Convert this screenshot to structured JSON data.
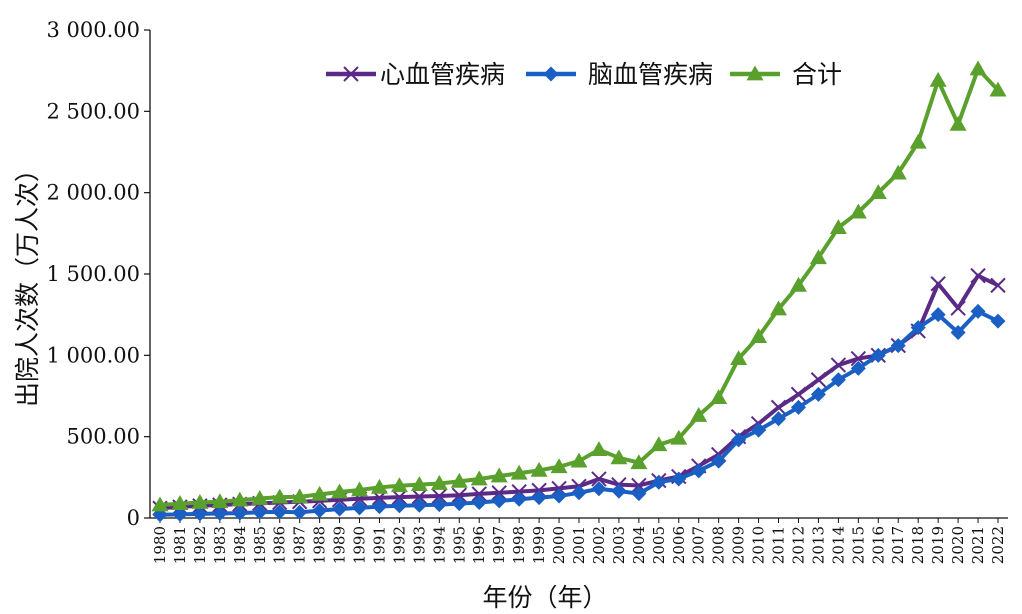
{
  "chart_data": {
    "type": "line",
    "xlabel": "年份（年）",
    "ylabel": "出院人次数（万人次）",
    "ylim": [
      0,
      3000
    ],
    "y_ticks": [
      0,
      500,
      1000,
      1500,
      2000,
      2500,
      3000
    ],
    "y_tick_labels": [
      "0",
      "500.00",
      "1 000.00",
      "1 500.00",
      "2 000.00",
      "2 500.00",
      "3 000.00"
    ],
    "categories": [
      "1980",
      "1981",
      "1982",
      "1983",
      "1984",
      "1985",
      "1986",
      "1987",
      "1988",
      "1989",
      "1990",
      "1991",
      "1992",
      "1993",
      "1994",
      "1995",
      "1996",
      "1997",
      "1998",
      "1999",
      "2000",
      "2001",
      "2002",
      "2003",
      "2004",
      "2005",
      "2006",
      "2007",
      "2008",
      "2009",
      "2010",
      "2011",
      "2012",
      "2013",
      "2014",
      "2015",
      "2016",
      "2017",
      "2018",
      "2019",
      "2020",
      "2021",
      "2022"
    ],
    "grid": false,
    "legend_position": "top",
    "series": [
      {
        "name": "心血管疾病",
        "color": "#5b2a86",
        "marker": "x",
        "values": [
          60,
          68,
          75,
          80,
          85,
          90,
          95,
          100,
          105,
          112,
          118,
          124,
          128,
          132,
          135,
          140,
          148,
          155,
          162,
          170,
          182,
          195,
          240,
          205,
          200,
          230,
          255,
          320,
          390,
          500,
          580,
          680,
          760,
          850,
          940,
          980,
          1000,
          1060,
          1150,
          1440,
          1290,
          1490,
          1430
        ]
      },
      {
        "name": "脑血管疾病",
        "color": "#1a5fc4",
        "marker": "diamond",
        "values": [
          20,
          22,
          25,
          28,
          30,
          35,
          38,
          35,
          45,
          55,
          62,
          70,
          75,
          78,
          82,
          88,
          95,
          105,
          115,
          125,
          135,
          155,
          180,
          165,
          150,
          220,
          240,
          290,
          350,
          480,
          540,
          610,
          680,
          760,
          850,
          920,
          1000,
          1060,
          1170,
          1250,
          1140,
          1270,
          1210
        ]
      },
      {
        "name": "合计",
        "color": "#5aa02c",
        "marker": "triangle",
        "values": [
          80,
          88,
          95,
          100,
          110,
          120,
          128,
          130,
          145,
          160,
          172,
          188,
          198,
          205,
          212,
          225,
          240,
          258,
          275,
          293,
          315,
          350,
          420,
          370,
          340,
          450,
          490,
          630,
          740,
          980,
          1115,
          1285,
          1430,
          1600,
          1785,
          1880,
          2000,
          2120,
          2310,
          2690,
          2420,
          2760,
          2630
        ]
      }
    ]
  }
}
